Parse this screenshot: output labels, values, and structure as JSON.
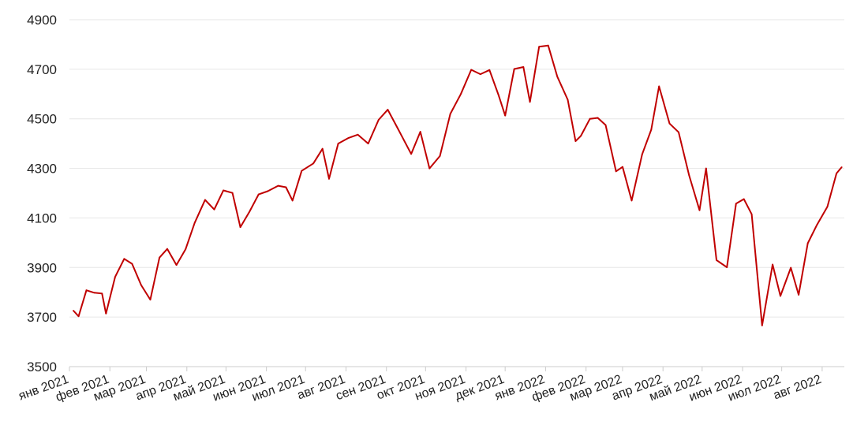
{
  "chart_data": {
    "type": "line",
    "title": "",
    "xlabel": "",
    "ylabel": "",
    "ylim": [
      3500,
      4900
    ],
    "yticks": [
      3500,
      3700,
      3900,
      4100,
      4300,
      4500,
      4700,
      4900
    ],
    "xticks": [
      "янв 2021",
      "фев 2021",
      "мар 2021",
      "апр 2021",
      "май 2021",
      "июн 2021",
      "июл 2021",
      "авг 2021",
      "сен 2021",
      "окт 2021",
      "ноя 2021",
      "дек 2021",
      "янв 2022",
      "фев 2022",
      "мар 2022",
      "апр 2022",
      "май 2022",
      "июн 2022",
      "июл 2022",
      "авг 2022"
    ],
    "grid": true,
    "legend": "none",
    "line_color": "#c00000",
    "series": [
      {
        "x": [
          "2021-01-04",
          "2021-01-08",
          "2021-01-14",
          "2021-01-20",
          "2021-01-26",
          "2021-01-29",
          "2021-02-05",
          "2021-02-12",
          "2021-02-18",
          "2021-02-25",
          "2021-03-04",
          "2021-03-11",
          "2021-03-17",
          "2021-03-24",
          "2021-03-31",
          "2021-04-07",
          "2021-04-15",
          "2021-04-22",
          "2021-04-29",
          "2021-05-06",
          "2021-05-12",
          "2021-05-19",
          "2021-05-26",
          "2021-06-02",
          "2021-06-10",
          "2021-06-16",
          "2021-06-21",
          "2021-06-28",
          "2021-07-07",
          "2021-07-14",
          "2021-07-19",
          "2021-07-26",
          "2021-08-03",
          "2021-08-10",
          "2021-08-18",
          "2021-08-26",
          "2021-09-02",
          "2021-09-10",
          "2021-09-20",
          "2021-09-27",
          "2021-10-04",
          "2021-10-12",
          "2021-10-20",
          "2021-10-28",
          "2021-11-05",
          "2021-11-12",
          "2021-11-19",
          "2021-11-26",
          "2021-12-01",
          "2021-12-08",
          "2021-12-15",
          "2021-12-20",
          "2021-12-27",
          "2022-01-03",
          "2022-01-10",
          "2022-01-18",
          "2022-01-24",
          "2022-01-28",
          "2022-02-04",
          "2022-02-10",
          "2022-02-16",
          "2022-02-24",
          "2022-03-01",
          "2022-03-08",
          "2022-03-16",
          "2022-03-23",
          "2022-03-29",
          "2022-04-06",
          "2022-04-13",
          "2022-04-21",
          "2022-04-29",
          "2022-05-04",
          "2022-05-12",
          "2022-05-20",
          "2022-05-27",
          "2022-06-02",
          "2022-06-08",
          "2022-06-16",
          "2022-06-24",
          "2022-06-30",
          "2022-07-08",
          "2022-07-14",
          "2022-07-21",
          "2022-07-28",
          "2022-08-05",
          "2022-08-12",
          "2022-08-16"
        ],
        "values": [
          3726,
          3703,
          3808,
          3798,
          3795,
          3714,
          3862,
          3935,
          3915,
          3829,
          3770,
          3940,
          3975,
          3910,
          3973,
          4080,
          4173,
          4134,
          4211,
          4201,
          4063,
          4125,
          4195,
          4208,
          4230,
          4224,
          4170,
          4290,
          4320,
          4379,
          4258,
          4400,
          4423,
          4436,
          4400,
          4496,
          4537,
          4458,
          4358,
          4448,
          4300,
          4350,
          4520,
          4600,
          4698,
          4680,
          4697,
          4595,
          4513,
          4701,
          4709,
          4568,
          4791,
          4796,
          4670,
          4577,
          4410,
          4431,
          4500,
          4504,
          4475,
          4288,
          4306,
          4170,
          4357,
          4456,
          4631,
          4481,
          4446,
          4272,
          4131,
          4300,
          3930,
          3901,
          4158,
          4176,
          4115,
          3666,
          3912,
          3785,
          3899,
          3790,
          3998,
          4072,
          4145,
          4280,
          4305
        ]
      }
    ]
  }
}
